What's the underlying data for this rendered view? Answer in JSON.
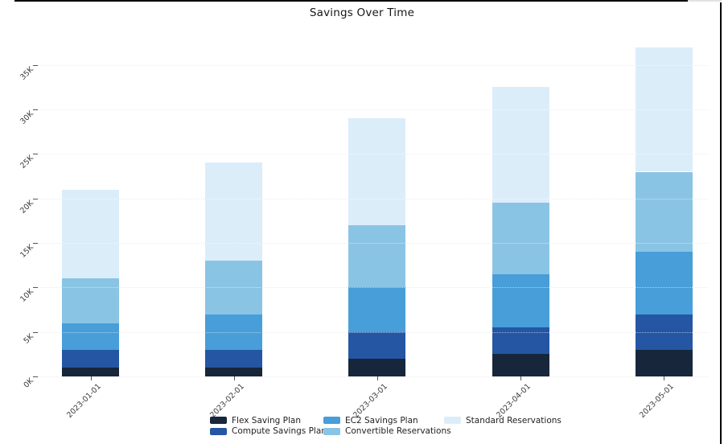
{
  "chart_data": {
    "type": "bar",
    "stacked": true,
    "title": "Savings Over Time",
    "categories": [
      "2023-01-01",
      "2023-02-01",
      "2023-03-01",
      "2023-04-01",
      "2023-05-01"
    ],
    "series": [
      {
        "name": "Flex Saving Plan",
        "color": "#17263b",
        "values": [
          1000,
          1000,
          2000,
          2500,
          3000
        ]
      },
      {
        "name": "Compute Savings Plan",
        "color": "#2456a3",
        "values": [
          2000,
          2000,
          3000,
          3000,
          4000
        ]
      },
      {
        "name": "EC2 Savings Plan",
        "color": "#479ed8",
        "values": [
          3000,
          4000,
          5000,
          6000,
          7000
        ]
      },
      {
        "name": "Convertible Reservations",
        "color": "#8ac4e5",
        "values": [
          5000,
          6000,
          7000,
          8000,
          9000
        ]
      },
      {
        "name": "Standard Reservations",
        "color": "#dcedfa",
        "values": [
          10000,
          11000,
          12000,
          13000,
          14000
        ]
      }
    ],
    "totals": [
      21000,
      24000,
      29000,
      32500,
      37000
    ],
    "y_axis": {
      "tick_labels": [
        "0K",
        "5K",
        "10K",
        "15K",
        "20K",
        "25K",
        "30K",
        "35K"
      ],
      "tick_values": [
        0,
        5000,
        10000,
        15000,
        20000,
        25000,
        30000,
        35000
      ],
      "range": [
        0,
        38500
      ]
    },
    "legend": {
      "position": "bottom",
      "rows": 2,
      "columns": 3
    },
    "grid": true
  },
  "colors": {
    "background": "#ffffff",
    "gridline": "#d9d9d9",
    "tick_text": "#3a3a3a",
    "title_text": "#161616",
    "frame_dark": "#000000",
    "frame_light": "#e2e2e2"
  }
}
